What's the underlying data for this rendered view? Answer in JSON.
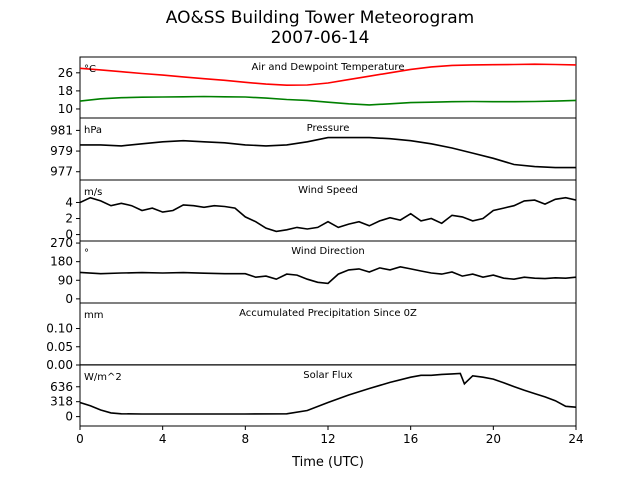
{
  "figure": {
    "title": "AO&SS Building Tower Meteorogram",
    "subtitle": "2007-06-14",
    "xlabel": "Time (UTC)",
    "x_ticks": [
      "0",
      "4",
      "8",
      "12",
      "16",
      "20",
      "24"
    ]
  },
  "chart_data": [
    {
      "type": "line",
      "title": "Air and Dewpoint Temperature",
      "ylabel": "°C",
      "ylim": [
        6,
        33
      ],
      "yticks": [
        10,
        18,
        26
      ],
      "xlim": [
        0,
        24
      ],
      "series": [
        {
          "color": "#ff0000",
          "x": [
            0,
            1,
            2,
            3,
            4,
            5,
            6,
            7,
            8,
            9,
            10,
            11,
            12,
            13,
            14,
            15,
            16,
            17,
            18,
            19,
            20,
            21,
            22,
            23,
            24
          ],
          "values": [
            28,
            27.3,
            26.5,
            25.7,
            25,
            24.2,
            23.4,
            22.7,
            21.8,
            21,
            20.5,
            20.6,
            21.5,
            23,
            24.5,
            26,
            27.5,
            28.6,
            29.3,
            29.5,
            29.6,
            29.7,
            29.8,
            29.7,
            29.5
          ]
        },
        {
          "color": "#008000",
          "x": [
            0,
            1,
            2,
            3,
            4,
            5,
            6,
            7,
            8,
            9,
            10,
            11,
            12,
            13,
            14,
            15,
            16,
            17,
            18,
            19,
            20,
            21,
            22,
            23,
            24
          ],
          "values": [
            13.5,
            14.5,
            15,
            15.2,
            15.3,
            15.4,
            15.5,
            15.4,
            15.3,
            14.8,
            14.2,
            13.8,
            13,
            12.3,
            11.8,
            12.3,
            12.8,
            13,
            13.2,
            13.3,
            13.2,
            13.2,
            13.3,
            13.5,
            13.8
          ]
        }
      ]
    },
    {
      "type": "line",
      "title": "Pressure",
      "ylabel": "hPa",
      "ylim": [
        976.2,
        982.2
      ],
      "yticks": [
        977,
        979,
        981
      ],
      "xlim": [
        0,
        24
      ],
      "series": [
        {
          "color": "#000000",
          "x": [
            0,
            1,
            2,
            3,
            4,
            5,
            6,
            7,
            8,
            9,
            10,
            11,
            12,
            13,
            14,
            15,
            16,
            17,
            18,
            19,
            20,
            21,
            22,
            23,
            24
          ],
          "values": [
            979.6,
            979.6,
            979.5,
            979.7,
            979.9,
            980.0,
            979.9,
            979.8,
            979.6,
            979.5,
            979.6,
            979.9,
            980.3,
            980.3,
            980.3,
            980.2,
            980.0,
            979.7,
            979.3,
            978.8,
            978.3,
            977.7,
            977.5,
            977.4,
            977.4
          ]
        }
      ]
    },
    {
      "type": "line",
      "title": "Wind Speed",
      "ylabel": "m/s",
      "ylim": [
        -0.8,
        6.8
      ],
      "yticks": [
        0,
        2,
        4
      ],
      "xlim": [
        0,
        24
      ],
      "series": [
        {
          "color": "#000000",
          "x": [
            0,
            0.5,
            1,
            1.5,
            2,
            2.5,
            3,
            3.5,
            4,
            4.5,
            5,
            5.5,
            6,
            6.5,
            7,
            7.5,
            8,
            8.5,
            9,
            9.5,
            10,
            10.5,
            11,
            11.5,
            12,
            12.5,
            13,
            13.5,
            14,
            14.5,
            15,
            15.5,
            16,
            16.5,
            17,
            17.5,
            18,
            18.5,
            19,
            19.5,
            20,
            20.5,
            21,
            21.5,
            22,
            22.5,
            23,
            23.5,
            24
          ],
          "values": [
            4,
            4.6,
            4.2,
            3.6,
            3.9,
            3.6,
            3.0,
            3.3,
            2.8,
            3.0,
            3.7,
            3.6,
            3.4,
            3.6,
            3.5,
            3.3,
            2.2,
            1.6,
            0.8,
            0.4,
            0.6,
            0.9,
            0.7,
            0.9,
            1.6,
            0.9,
            1.3,
            1.6,
            1.1,
            1.7,
            2.1,
            1.8,
            2.6,
            1.7,
            2.0,
            1.4,
            2.4,
            2.2,
            1.7,
            2.0,
            3.0,
            3.3,
            3.6,
            4.2,
            4.3,
            3.8,
            4.4,
            4.6,
            4.3
          ]
        }
      ]
    },
    {
      "type": "line",
      "title": "Wind Direction",
      "ylabel": "°",
      "ylim": [
        -20,
        280
      ],
      "yticks": [
        0,
        90,
        180,
        270
      ],
      "xlim": [
        0,
        24
      ],
      "series": [
        {
          "color": "#000000",
          "x": [
            0,
            1,
            2,
            3,
            4,
            5,
            6,
            7,
            8,
            8.5,
            9,
            9.5,
            10,
            10.5,
            11,
            11.5,
            12,
            12.5,
            13,
            13.5,
            14,
            14.5,
            15,
            15.5,
            16,
            16.5,
            17,
            17.5,
            18,
            18.5,
            19,
            19.5,
            20,
            20.5,
            21,
            21.5,
            22,
            22.5,
            23,
            23.5,
            24
          ],
          "values": [
            128,
            122,
            125,
            127,
            125,
            127,
            124,
            122,
            122,
            105,
            110,
            95,
            120,
            115,
            95,
            80,
            75,
            120,
            140,
            145,
            130,
            150,
            140,
            155,
            145,
            135,
            125,
            120,
            130,
            110,
            120,
            105,
            115,
            100,
            95,
            105,
            100,
            98,
            102,
            100,
            105
          ]
        }
      ]
    },
    {
      "type": "line",
      "title": "Accumulated Precipitation Since 0Z",
      "ylabel": "mm",
      "ylim": [
        0,
        0.17
      ],
      "yticks": [
        "0.00",
        "0.05",
        "0.10"
      ],
      "xlim": [
        0,
        24
      ],
      "series": [
        {
          "color": "#000000",
          "x": [
            0,
            24
          ],
          "values": [
            0,
            0
          ]
        }
      ]
    },
    {
      "type": "line",
      "title": "Solar Flux",
      "ylabel": "W/m^2",
      "ylim": [
        -200,
        1100
      ],
      "yticks": [
        0,
        318,
        636
      ],
      "xlim": [
        0,
        24
      ],
      "series": [
        {
          "color": "#000000",
          "x": [
            0,
            0.5,
            1,
            1.5,
            2,
            3,
            5,
            8,
            10,
            11,
            12,
            13,
            14,
            15,
            16,
            16.5,
            17,
            17.5,
            18,
            18.4,
            18.6,
            19,
            19.5,
            20,
            20.5,
            21,
            21.5,
            22,
            22.5,
            23,
            23.5,
            24
          ],
          "values": [
            300,
            230,
            140,
            80,
            60,
            55,
            55,
            55,
            60,
            130,
            300,
            460,
            600,
            730,
            840,
            880,
            880,
            900,
            910,
            920,
            700,
            870,
            840,
            800,
            720,
            640,
            560,
            490,
            420,
            340,
            220,
            200
          ]
        }
      ]
    }
  ]
}
